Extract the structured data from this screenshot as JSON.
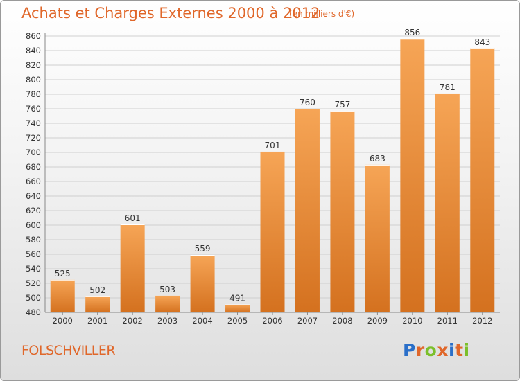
{
  "title": "Achats et Charges Externes 2000 à 2012",
  "subtitle": "(en milliers d'€)",
  "commune": "FOLSCHVILLER",
  "logo": {
    "letters": [
      "P",
      "r",
      "o",
      "x",
      "i",
      "t",
      "i"
    ],
    "colors": [
      "#2a6fc9",
      "#e0672a",
      "#7bbf2a",
      "#e0672a",
      "#2a6fc9",
      "#e0672a",
      "#7bbf2a"
    ]
  },
  "colors": {
    "accent": "#e0672a",
    "bar_light": "#f6a556",
    "bar_dark": "#d4711f"
  },
  "chart_data": {
    "type": "bar",
    "title": "Achats et Charges Externes 2000 à 2012",
    "subtitle": "(en milliers d'€)",
    "categories": [
      "2000",
      "2001",
      "2002",
      "2003",
      "2004",
      "2005",
      "2006",
      "2007",
      "2008",
      "2009",
      "2010",
      "2011",
      "2012"
    ],
    "values": [
      525,
      502,
      601,
      503,
      559,
      491,
      701,
      760,
      757,
      683,
      856,
      781,
      843
    ],
    "ylim": [
      480,
      860
    ],
    "ytick_step": 20,
    "grid": true,
    "legend": "none"
  }
}
